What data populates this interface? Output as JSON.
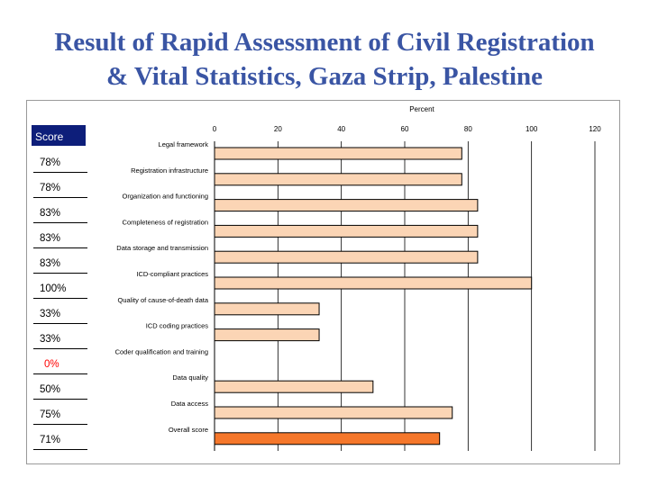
{
  "slide": {
    "title_line1": "Result of Rapid Assessment of Civil Registration",
    "title_line2": "& Vital Statistics, Gaza Strip, Palestine"
  },
  "scores": {
    "header": "Score",
    "items": [
      {
        "label": "78%",
        "color": "#000000"
      },
      {
        "label": "78%",
        "color": "#000000"
      },
      {
        "label": "83%",
        "color": "#000000"
      },
      {
        "label": "83%",
        "color": "#000000"
      },
      {
        "label": "83%",
        "color": "#000000"
      },
      {
        "label": "100%",
        "color": "#000000"
      },
      {
        "label": "33%",
        "color": "#000000"
      },
      {
        "label": "33%",
        "color": "#000000"
      },
      {
        "label": "0%",
        "color": "#ff0000"
      },
      {
        "label": "50%",
        "color": "#000000"
      },
      {
        "label": "75%",
        "color": "#000000"
      },
      {
        "label": "71%",
        "color": "#000000"
      }
    ]
  },
  "chart_data": {
    "type": "bar",
    "orientation": "horizontal",
    "title": "",
    "xlabel": "Percent",
    "ylabel": "",
    "xlim": [
      0,
      120
    ],
    "xticks": [
      0,
      20,
      40,
      60,
      80,
      100,
      120
    ],
    "grid": "vertical",
    "categories": [
      "Legal framework",
      "Registration infrastructure",
      "Organization and functioning",
      "Completeness of registration",
      "Data storage and transmission",
      "ICD-compliant practices",
      "Quality of cause-of-death data",
      "ICD coding practices",
      "Coder qualification and training",
      "Data quality",
      "Data access",
      "Overall score"
    ],
    "values": [
      78,
      78,
      83,
      83,
      83,
      100,
      33,
      33,
      0,
      50,
      75,
      71
    ],
    "colors": {
      "bar_fill": "#fbd5b5",
      "overall_fill": "#f5772b",
      "bar_stroke": "#000000"
    }
  }
}
